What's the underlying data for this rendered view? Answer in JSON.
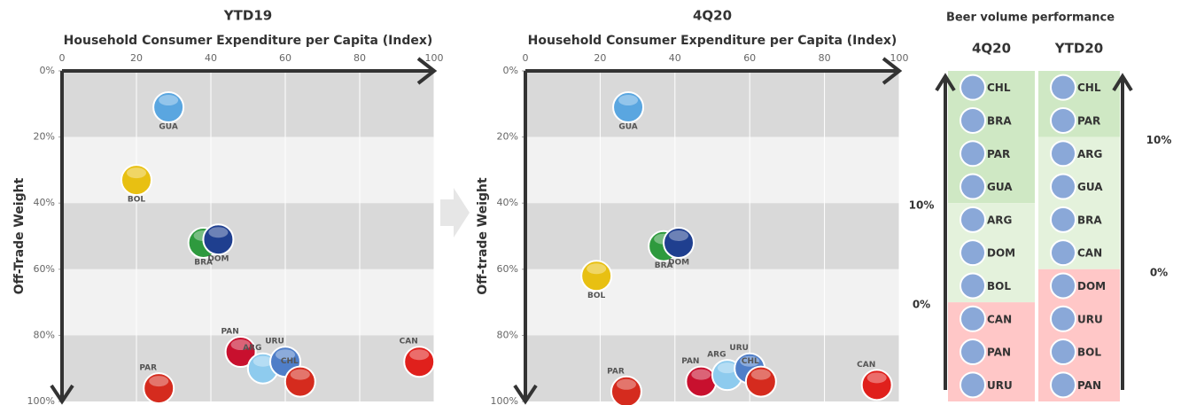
{
  "chart_data": [
    {
      "type": "scatter",
      "title": "YTD19",
      "x_label": "Household Consumer Expenditure per Capita (Index)",
      "y_label": "Off-Trade Weight",
      "labels": [
        "GUA",
        "BOL",
        "BRA",
        "DOM",
        "PAN",
        "ARG",
        "URU",
        "CHL",
        "CAN",
        "PAR"
      ],
      "x": [
        28.6,
        20,
        38,
        42,
        48,
        54,
        60,
        64,
        96,
        26
      ],
      "values": [
        11,
        33,
        52,
        51,
        85,
        90,
        88,
        94,
        88,
        96
      ],
      "colors": [
        "#5aa6e0",
        "#e8c012",
        "#2e9a3e",
        "#1f3f8f",
        "#c8102e",
        "#8ecbee",
        "#4f7ec8",
        "#d52b1e",
        "#e0201c",
        "#d52b1e"
      ],
      "xlim": [
        0,
        100
      ],
      "xticks": [
        0,
        20,
        40,
        60,
        80,
        100
      ],
      "ylim": [
        0,
        100
      ],
      "y_inverted": true,
      "yticks": [
        {
          "value": 0,
          "label": "0%"
        },
        {
          "value": 20,
          "label": "20%"
        },
        {
          "value": 40,
          "label": "40%"
        },
        {
          "value": 60,
          "label": "60%"
        },
        {
          "value": 80,
          "label": "80%"
        },
        {
          "value": 100,
          "label": "100%"
        }
      ],
      "grid": true
    },
    {
      "type": "scatter",
      "title": "4Q20",
      "x_label": "Household Consumer Expenditure per Capita (Index)",
      "y_label": "Off-trade Weight",
      "labels": [
        "GUA",
        "BRA",
        "DOM",
        "BOL",
        "PAN",
        "ARG",
        "URU",
        "CHL",
        "CAN",
        "PAR"
      ],
      "x": [
        27.5,
        37,
        41,
        19,
        47,
        54,
        60,
        63,
        94,
        27
      ],
      "values": [
        11,
        53,
        52,
        62,
        94,
        92,
        90,
        94,
        95,
        97
      ],
      "colors": [
        "#5aa6e0",
        "#2e9a3e",
        "#1f3f8f",
        "#e8c012",
        "#c8102e",
        "#8ecbee",
        "#4f7ec8",
        "#d52b1e",
        "#e0201c",
        "#d52b1e"
      ],
      "xlim": [
        0,
        100
      ],
      "xticks": [
        0,
        20,
        40,
        60,
        80,
        100
      ],
      "ylim": [
        0,
        100
      ],
      "y_inverted": true,
      "yticks": [
        {
          "value": 0,
          "label": "0%"
        },
        {
          "value": 20,
          "label": "20%"
        },
        {
          "value": 40,
          "label": "40%"
        },
        {
          "value": 60,
          "label": "60%"
        },
        {
          "value": 80,
          "label": "80%"
        },
        {
          "value": 100,
          "label": "100%"
        }
      ],
      "grid": true
    }
  ],
  "ranking": {
    "title": "Beer volume performance",
    "columns": [
      {
        "name": "4Q20",
        "markers": [
          "10%",
          "0%"
        ],
        "groups": [
          {
            "items": [
              "CHL",
              "BRA",
              "PAR",
              "GUA"
            ]
          },
          {
            "items": [
              "ARG",
              "DOM",
              "BOL"
            ]
          },
          {
            "items": [
              "CAN",
              "PAN",
              "URU"
            ]
          }
        ]
      },
      {
        "name": "YTD20",
        "markers": [
          "10%",
          "0%"
        ],
        "groups": [
          {
            "items": [
              "CHL",
              "PAR"
            ]
          },
          {
            "items": [
              "ARG",
              "GUA",
              "BRA",
              "CAN"
            ]
          },
          {
            "items": [
              "DOM",
              "URU",
              "BOL",
              "PAN"
            ]
          }
        ]
      }
    ]
  }
}
